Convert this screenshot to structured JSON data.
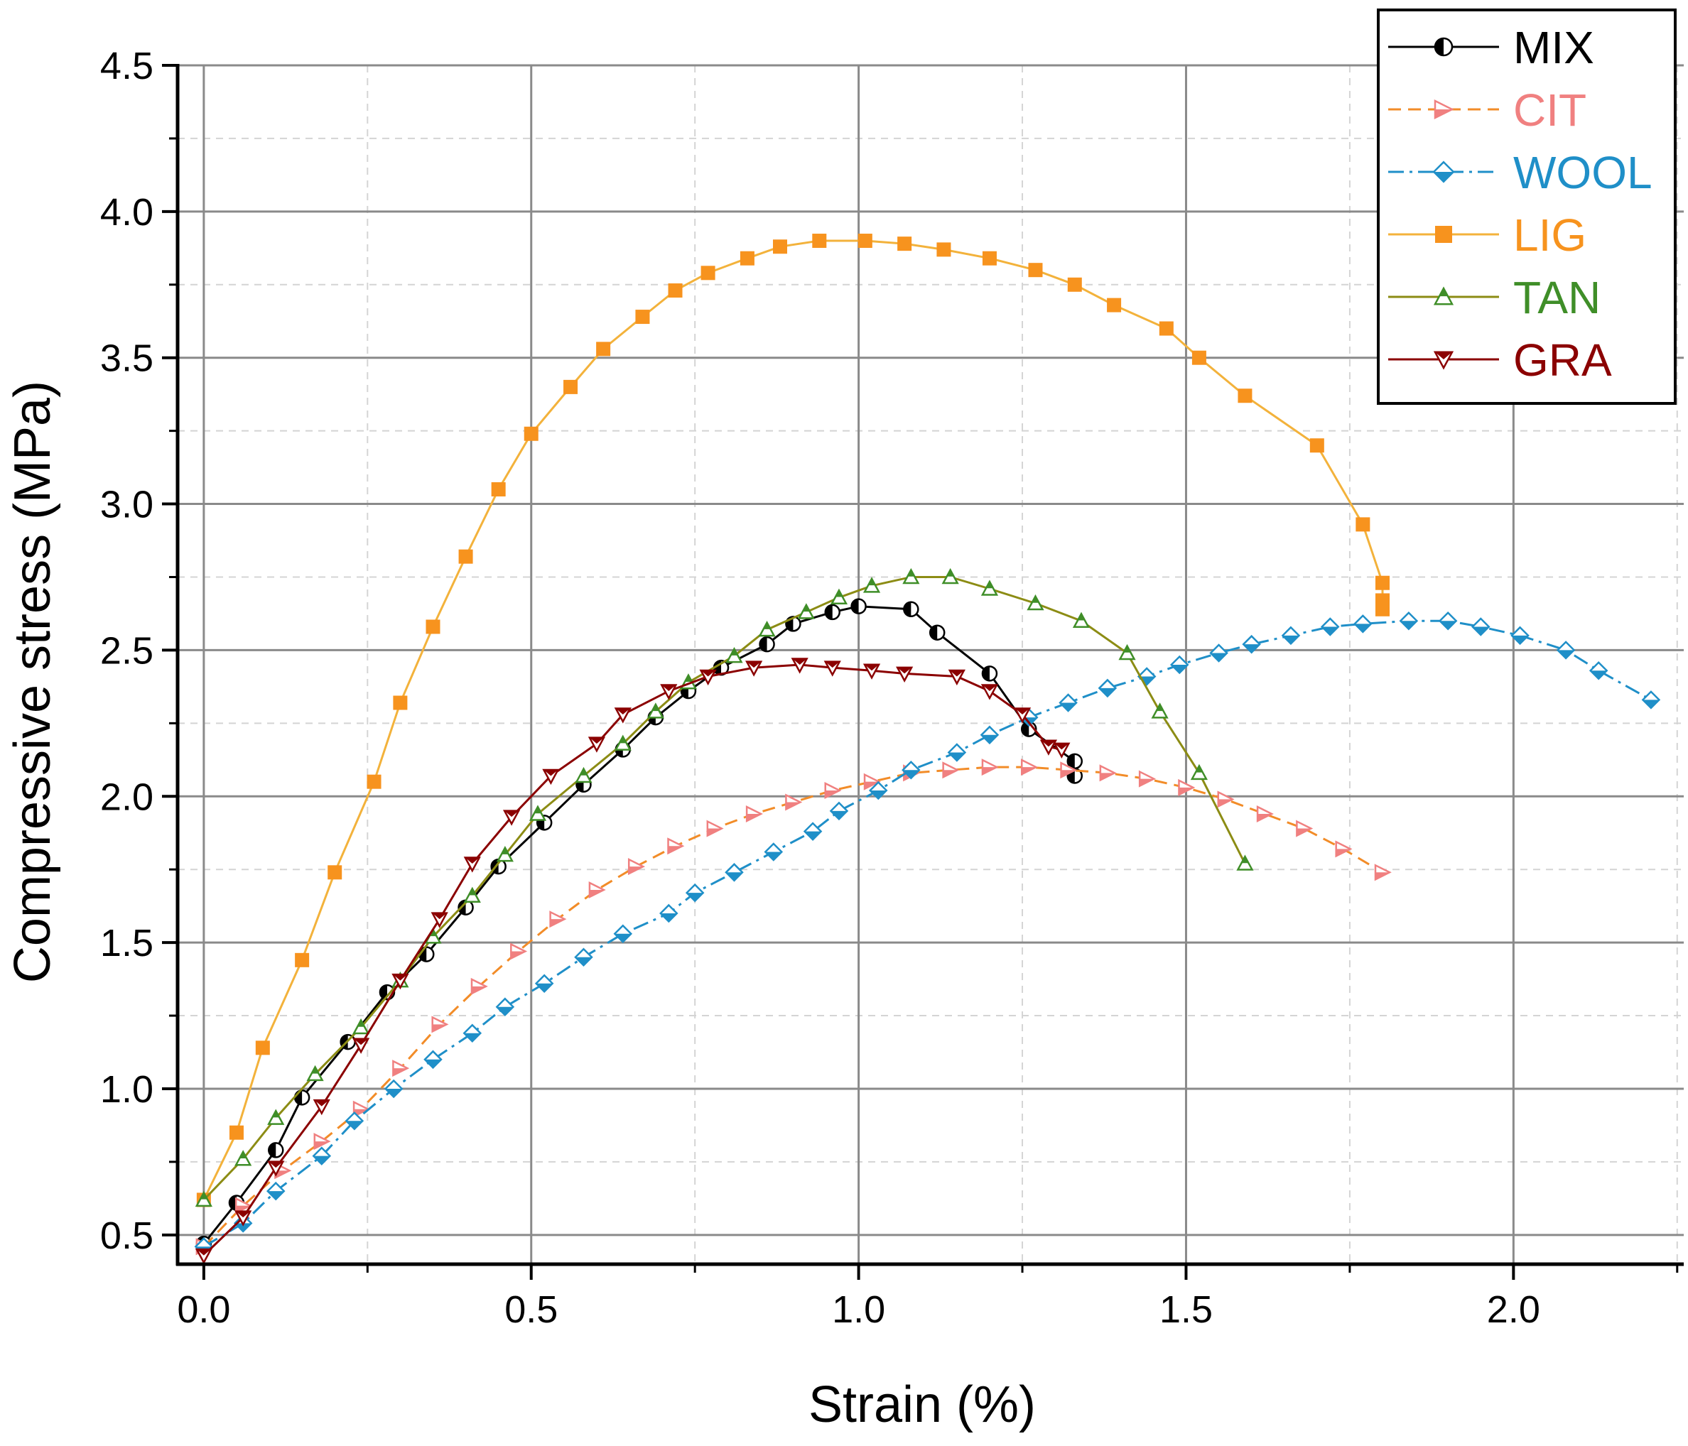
{
  "chart_data": {
    "type": "line",
    "title": "",
    "xlabel": "Strain (%)",
    "ylabel": "Compressive stress (MPa)",
    "xlim": [
      -0.04,
      2.26
    ],
    "ylim": [
      0.4,
      4.5
    ],
    "xticks": [
      0.0,
      0.5,
      1.0,
      1.5,
      2.0
    ],
    "yticks": [
      0.5,
      1.0,
      1.5,
      2.0,
      2.5,
      3.0,
      3.5,
      4.0,
      4.5
    ],
    "xtick_labels": [
      "0.0",
      "0.5",
      "1.0",
      "1.5",
      "2.0"
    ],
    "ytick_labels": [
      "0.5",
      "1.0",
      "1.5",
      "2.0",
      "2.5",
      "3.0",
      "3.5",
      "4.0",
      "4.5"
    ],
    "grid": true,
    "legend_position": "top-right",
    "series": [
      {
        "name": "MIX",
        "color": "#000000",
        "marker": "circle-half",
        "dash": "solid",
        "x": [
          0.0,
          0.05,
          0.11,
          0.15,
          0.22,
          0.28,
          0.34,
          0.4,
          0.45,
          0.52,
          0.58,
          0.64,
          0.69,
          0.74,
          0.79,
          0.86,
          0.9,
          0.96,
          1.0,
          1.08,
          1.12,
          1.2,
          1.26,
          1.33,
          1.33
        ],
        "y": [
          0.47,
          0.61,
          0.79,
          0.97,
          1.16,
          1.33,
          1.46,
          1.62,
          1.76,
          1.91,
          2.04,
          2.16,
          2.27,
          2.36,
          2.44,
          2.52,
          2.59,
          2.63,
          2.65,
          2.64,
          2.56,
          2.42,
          2.23,
          2.12,
          2.07
        ]
      },
      {
        "name": "CIT",
        "color": "#F08080",
        "line_color": "#F28C28",
        "marker": "triangle-right",
        "dash": "dashed",
        "x": [
          0.0,
          0.06,
          0.12,
          0.18,
          0.24,
          0.3,
          0.36,
          0.42,
          0.48,
          0.54,
          0.6,
          0.66,
          0.72,
          0.78,
          0.84,
          0.9,
          0.96,
          1.02,
          1.08,
          1.14,
          1.2,
          1.26,
          1.32,
          1.38,
          1.44,
          1.5,
          1.56,
          1.62,
          1.68,
          1.74,
          1.8
        ],
        "y": [
          0.46,
          0.6,
          0.72,
          0.82,
          0.93,
          1.07,
          1.22,
          1.35,
          1.47,
          1.58,
          1.68,
          1.76,
          1.83,
          1.89,
          1.94,
          1.98,
          2.02,
          2.05,
          2.08,
          2.09,
          2.1,
          2.1,
          2.09,
          2.08,
          2.06,
          2.03,
          1.99,
          1.94,
          1.89,
          1.82,
          1.74
        ]
      },
      {
        "name": "WOOL",
        "color": "#1F8FC8",
        "marker": "diamond",
        "dash": "dashdot",
        "x": [
          0.0,
          0.06,
          0.11,
          0.18,
          0.23,
          0.29,
          0.35,
          0.41,
          0.46,
          0.52,
          0.58,
          0.64,
          0.71,
          0.75,
          0.81,
          0.87,
          0.93,
          0.97,
          1.03,
          1.08,
          1.15,
          1.2,
          1.26,
          1.32,
          1.38,
          1.44,
          1.49,
          1.55,
          1.6,
          1.66,
          1.72,
          1.77,
          1.84,
          1.9,
          1.95,
          2.01,
          2.08,
          2.13,
          2.21
        ],
        "y": [
          0.46,
          0.54,
          0.65,
          0.77,
          0.89,
          1.0,
          1.1,
          1.19,
          1.28,
          1.36,
          1.45,
          1.53,
          1.6,
          1.67,
          1.74,
          1.81,
          1.88,
          1.95,
          2.02,
          2.09,
          2.15,
          2.21,
          2.27,
          2.32,
          2.37,
          2.41,
          2.45,
          2.49,
          2.52,
          2.55,
          2.58,
          2.59,
          2.6,
          2.6,
          2.58,
          2.55,
          2.5,
          2.43,
          2.33
        ]
      },
      {
        "name": "LIG",
        "color": "#F7931E",
        "line_color": "#F3B23B",
        "marker": "square",
        "dash": "solid",
        "x": [
          0.0,
          0.05,
          0.09,
          0.15,
          0.2,
          0.26,
          0.3,
          0.35,
          0.4,
          0.45,
          0.5,
          0.56,
          0.61,
          0.67,
          0.72,
          0.77,
          0.83,
          0.88,
          0.94,
          1.01,
          1.07,
          1.13,
          1.2,
          1.27,
          1.33,
          1.39,
          1.47,
          1.52,
          1.59,
          1.7,
          1.77,
          1.8,
          1.8,
          1.8
        ],
        "y": [
          0.62,
          0.85,
          1.14,
          1.44,
          1.74,
          2.05,
          2.32,
          2.58,
          2.82,
          3.05,
          3.24,
          3.4,
          3.53,
          3.64,
          3.73,
          3.79,
          3.84,
          3.88,
          3.9,
          3.9,
          3.89,
          3.87,
          3.84,
          3.8,
          3.75,
          3.68,
          3.6,
          3.5,
          3.37,
          3.2,
          2.93,
          2.73,
          2.67,
          2.64
        ]
      },
      {
        "name": "TAN",
        "color": "#3F8E28",
        "line_color": "#8C8C14",
        "marker": "triangle-up",
        "dash": "solid",
        "x": [
          0.0,
          0.06,
          0.11,
          0.17,
          0.24,
          0.3,
          0.35,
          0.41,
          0.46,
          0.51,
          0.58,
          0.64,
          0.69,
          0.74,
          0.81,
          0.86,
          0.92,
          0.97,
          1.02,
          1.08,
          1.14,
          1.2,
          1.27,
          1.34,
          1.41,
          1.46,
          1.52,
          1.59
        ],
        "y": [
          0.62,
          0.76,
          0.9,
          1.05,
          1.21,
          1.37,
          1.52,
          1.66,
          1.8,
          1.94,
          2.07,
          2.18,
          2.29,
          2.39,
          2.48,
          2.57,
          2.63,
          2.68,
          2.72,
          2.75,
          2.75,
          2.71,
          2.66,
          2.6,
          2.49,
          2.29,
          2.08,
          1.77
        ]
      },
      {
        "name": "GRA",
        "color": "#8B0000",
        "marker": "triangle-down",
        "dash": "solid",
        "x": [
          0.0,
          0.06,
          0.11,
          0.18,
          0.24,
          0.3,
          0.36,
          0.41,
          0.47,
          0.53,
          0.6,
          0.64,
          0.71,
          0.77,
          0.84,
          0.91,
          0.96,
          1.02,
          1.07,
          1.15,
          1.2,
          1.25,
          1.29,
          1.31
        ],
        "y": [
          0.43,
          0.56,
          0.73,
          0.94,
          1.15,
          1.37,
          1.58,
          1.77,
          1.93,
          2.07,
          2.18,
          2.28,
          2.36,
          2.41,
          2.44,
          2.45,
          2.44,
          2.43,
          2.42,
          2.41,
          2.36,
          2.28,
          2.17,
          2.16
        ]
      }
    ]
  }
}
